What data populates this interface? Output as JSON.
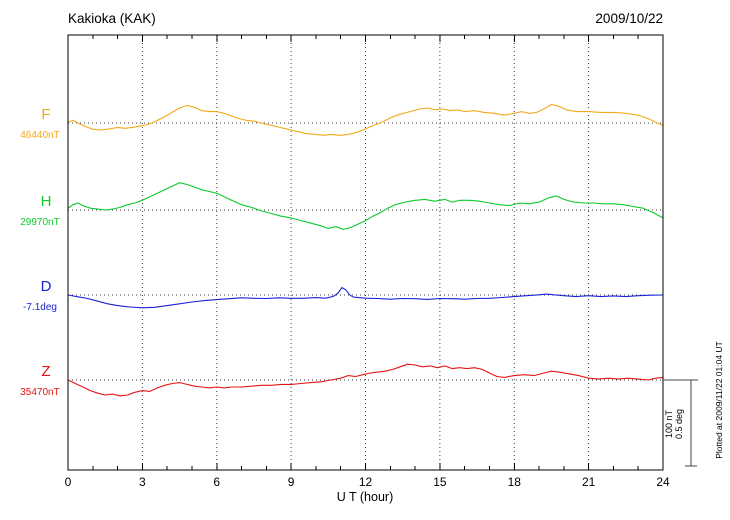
{
  "page": {
    "title": "Kakioka (KAK)",
    "date": "2009/10/22",
    "xlabel": "U T (hour)",
    "plotted_at": "Plotted at 2009/11/22 01:04 UT",
    "scale_bar": {
      "line1": "100 nT",
      "line2": "0.5 deg"
    }
  },
  "chart_data": {
    "type": "line",
    "title": "Kakioka (KAK)",
    "subtitle": "2009/10/22",
    "xlabel": "U T (hour)",
    "x_range": [
      0,
      24
    ],
    "x_ticks": [
      0,
      3,
      6,
      9,
      12,
      15,
      18,
      21,
      24
    ],
    "x_minor_tick_step_hours": 1,
    "grid": "dotted vertical lines at 3-hour ticks; dotted horizontal line at each component baseline",
    "legend_position": "left-of-plot component labels",
    "scale": {
      "nT_per_division": 100,
      "deg_per_division": 0.5
    },
    "points_format": "[hour_UT, offset_from_baseline_in_unit]",
    "series": [
      {
        "label": "F",
        "baseline_label": "46440nT",
        "baseline_value": 46440,
        "unit": "nT",
        "color": "#f5a81c",
        "points": [
          [
            0,
            1
          ],
          [
            0.2,
            3
          ],
          [
            0.4,
            0
          ],
          [
            0.7,
            -4
          ],
          [
            1,
            -7
          ],
          [
            1.3,
            -8
          ],
          [
            1.6,
            -7
          ],
          [
            2,
            -5
          ],
          [
            2.3,
            -6
          ],
          [
            2.6,
            -5
          ],
          [
            3,
            -3
          ],
          [
            3.3,
            -1
          ],
          [
            3.6,
            3
          ],
          [
            3.9,
            7
          ],
          [
            4.2,
            12
          ],
          [
            4.5,
            17
          ],
          [
            4.8,
            20
          ],
          [
            5.1,
            18
          ],
          [
            5.4,
            14
          ],
          [
            5.7,
            13
          ],
          [
            6,
            13
          ],
          [
            6.3,
            11
          ],
          [
            6.6,
            8
          ],
          [
            6.9,
            5
          ],
          [
            7.2,
            3
          ],
          [
            7.5,
            2
          ],
          [
            7.8,
            0
          ],
          [
            8.1,
            -2
          ],
          [
            8.4,
            -4
          ],
          [
            8.7,
            -6
          ],
          [
            9,
            -8
          ],
          [
            9.3,
            -10
          ],
          [
            9.6,
            -12
          ],
          [
            10,
            -13
          ],
          [
            10.3,
            -14
          ],
          [
            10.6,
            -13
          ],
          [
            11,
            -14
          ],
          [
            11.3,
            -13
          ],
          [
            11.6,
            -11
          ],
          [
            11.9,
            -8
          ],
          [
            12.2,
            -4
          ],
          [
            12.5,
            -1
          ],
          [
            12.8,
            3
          ],
          [
            13.1,
            7
          ],
          [
            13.4,
            10
          ],
          [
            13.8,
            13
          ],
          [
            14.2,
            16
          ],
          [
            14.5,
            17
          ],
          [
            14.8,
            15
          ],
          [
            15.1,
            16
          ],
          [
            15.4,
            14
          ],
          [
            15.7,
            15
          ],
          [
            16,
            13
          ],
          [
            16.4,
            14
          ],
          [
            16.8,
            12
          ],
          [
            17.2,
            11
          ],
          [
            17.6,
            9
          ],
          [
            18,
            11
          ],
          [
            18.3,
            13
          ],
          [
            18.6,
            11
          ],
          [
            18.9,
            12
          ],
          [
            19.2,
            16
          ],
          [
            19.5,
            21
          ],
          [
            19.8,
            19
          ],
          [
            20.1,
            15
          ],
          [
            20.5,
            13
          ],
          [
            21,
            13
          ],
          [
            21.5,
            12
          ],
          [
            22,
            12
          ],
          [
            22.5,
            11
          ],
          [
            23,
            9
          ],
          [
            23.4,
            5
          ],
          [
            23.7,
            1
          ],
          [
            24,
            -3
          ]
        ]
      },
      {
        "label": "H",
        "baseline_label": "29970nT",
        "baseline_value": 29970,
        "unit": "nT",
        "color": "#0ccb2a",
        "points": [
          [
            0,
            2
          ],
          [
            0.2,
            6
          ],
          [
            0.4,
            8
          ],
          [
            0.6,
            5
          ],
          [
            0.9,
            2
          ],
          [
            1.2,
            1
          ],
          [
            1.5,
            0
          ],
          [
            1.8,
            1
          ],
          [
            2.1,
            3
          ],
          [
            2.4,
            6
          ],
          [
            2.7,
            8
          ],
          [
            3,
            11
          ],
          [
            3.3,
            15
          ],
          [
            3.6,
            19
          ],
          [
            3.9,
            23
          ],
          [
            4.2,
            27
          ],
          [
            4.5,
            31
          ],
          [
            4.8,
            29
          ],
          [
            5.1,
            26
          ],
          [
            5.4,
            23
          ],
          [
            5.7,
            21
          ],
          [
            6,
            19
          ],
          [
            6.3,
            15
          ],
          [
            6.6,
            11
          ],
          [
            7,
            6
          ],
          [
            7.4,
            3
          ],
          [
            7.8,
            -1
          ],
          [
            8.2,
            -4
          ],
          [
            8.6,
            -7
          ],
          [
            9,
            -9
          ],
          [
            9.4,
            -12
          ],
          [
            9.8,
            -15
          ],
          [
            10.2,
            -18
          ],
          [
            10.5,
            -21
          ],
          [
            10.8,
            -19
          ],
          [
            11.1,
            -22
          ],
          [
            11.4,
            -20
          ],
          [
            11.7,
            -16
          ],
          [
            12,
            -12
          ],
          [
            12.3,
            -7
          ],
          [
            12.6,
            -3
          ],
          [
            12.9,
            2
          ],
          [
            13.2,
            6
          ],
          [
            13.6,
            9
          ],
          [
            14,
            11
          ],
          [
            14.4,
            12
          ],
          [
            14.8,
            10
          ],
          [
            15.2,
            12
          ],
          [
            15.5,
            9
          ],
          [
            15.8,
            11
          ],
          [
            16.2,
            11
          ],
          [
            16.6,
            10
          ],
          [
            17,
            8
          ],
          [
            17.4,
            6
          ],
          [
            17.8,
            5
          ],
          [
            18.2,
            8
          ],
          [
            18.6,
            7
          ],
          [
            19,
            9
          ],
          [
            19.4,
            14
          ],
          [
            19.7,
            16
          ],
          [
            20,
            12
          ],
          [
            20.4,
            9
          ],
          [
            20.8,
            8
          ],
          [
            21.2,
            8
          ],
          [
            21.6,
            7
          ],
          [
            22,
            7
          ],
          [
            22.4,
            6
          ],
          [
            22.8,
            4
          ],
          [
            23.2,
            2
          ],
          [
            23.6,
            -3
          ],
          [
            24,
            -9
          ]
        ]
      },
      {
        "label": "D",
        "baseline_label": "-7.1deg",
        "baseline_value": -7.1,
        "unit": "deg",
        "color": "#1822d8",
        "points": [
          [
            0,
            0
          ],
          [
            0.4,
            -0.01
          ],
          [
            0.8,
            -0.02
          ],
          [
            1.2,
            -0.035
          ],
          [
            1.6,
            -0.05
          ],
          [
            2,
            -0.06
          ],
          [
            2.5,
            -0.068
          ],
          [
            3,
            -0.073
          ],
          [
            3.5,
            -0.07
          ],
          [
            4,
            -0.06
          ],
          [
            4.5,
            -0.05
          ],
          [
            5,
            -0.04
          ],
          [
            5.5,
            -0.032
          ],
          [
            6,
            -0.026
          ],
          [
            6.5,
            -0.021
          ],
          [
            7,
            -0.016
          ],
          [
            7.5,
            -0.019
          ],
          [
            8,
            -0.02
          ],
          [
            8.5,
            -0.016
          ],
          [
            9,
            -0.019
          ],
          [
            9.5,
            -0.019
          ],
          [
            10,
            -0.015
          ],
          [
            10.4,
            -0.018
          ],
          [
            10.7,
            -0.008
          ],
          [
            10.9,
            0.012
          ],
          [
            11.05,
            0.042
          ],
          [
            11.2,
            0.03
          ],
          [
            11.35,
            0.002
          ],
          [
            11.5,
            -0.012
          ],
          [
            12,
            -0.018
          ],
          [
            12.5,
            -0.02
          ],
          [
            13,
            -0.024
          ],
          [
            13.5,
            -0.02
          ],
          [
            14,
            -0.021
          ],
          [
            14.5,
            -0.025
          ],
          [
            15,
            -0.02
          ],
          [
            15.5,
            -0.021
          ],
          [
            16,
            -0.024
          ],
          [
            16.5,
            -0.02
          ],
          [
            17,
            -0.019
          ],
          [
            17.5,
            -0.014
          ],
          [
            18,
            -0.009
          ],
          [
            18.5,
            -0.004
          ],
          [
            19,
            0.001
          ],
          [
            19.3,
            0.005
          ],
          [
            19.6,
            0.001
          ],
          [
            20,
            -0.004
          ],
          [
            20.5,
            -0.009
          ],
          [
            21,
            -0.004
          ],
          [
            21.5,
            -0.009
          ],
          [
            22,
            -0.005
          ],
          [
            22.5,
            -0.009
          ],
          [
            23,
            -0.004
          ],
          [
            23.5,
            -0.001
          ],
          [
            24,
            0
          ]
        ]
      },
      {
        "label": "Z",
        "baseline_label": "35470nT",
        "baseline_value": 35470,
        "unit": "nT",
        "color": "#e41414",
        "points": [
          [
            0,
            0
          ],
          [
            0.3,
            -4
          ],
          [
            0.6,
            -8
          ],
          [
            0.9,
            -12
          ],
          [
            1.2,
            -15
          ],
          [
            1.5,
            -17
          ],
          [
            1.8,
            -16
          ],
          [
            2.1,
            -18
          ],
          [
            2.4,
            -17
          ],
          [
            2.7,
            -14
          ],
          [
            3,
            -12
          ],
          [
            3.3,
            -13
          ],
          [
            3.6,
            -9
          ],
          [
            3.9,
            -6
          ],
          [
            4.2,
            -4
          ],
          [
            4.5,
            -3
          ],
          [
            4.8,
            -5
          ],
          [
            5.1,
            -7
          ],
          [
            5.4,
            -8
          ],
          [
            5.7,
            -9
          ],
          [
            6,
            -8
          ],
          [
            6.3,
            -9
          ],
          [
            6.6,
            -8
          ],
          [
            7,
            -8
          ],
          [
            7.4,
            -7
          ],
          [
            7.8,
            -6
          ],
          [
            8.2,
            -6
          ],
          [
            8.6,
            -5
          ],
          [
            9,
            -5
          ],
          [
            9.4,
            -4
          ],
          [
            9.8,
            -3
          ],
          [
            10.2,
            -2
          ],
          [
            10.6,
            0
          ],
          [
            11,
            2
          ],
          [
            11.3,
            5
          ],
          [
            11.6,
            4
          ],
          [
            11.9,
            6
          ],
          [
            12.2,
            8
          ],
          [
            12.5,
            9
          ],
          [
            12.8,
            10
          ],
          [
            13.1,
            12
          ],
          [
            13.4,
            15
          ],
          [
            13.7,
            18
          ],
          [
            14,
            17
          ],
          [
            14.3,
            15
          ],
          [
            14.6,
            16
          ],
          [
            14.9,
            14
          ],
          [
            15.2,
            16
          ],
          [
            15.5,
            13
          ],
          [
            15.8,
            14
          ],
          [
            16.1,
            13
          ],
          [
            16.4,
            14
          ],
          [
            16.7,
            12
          ],
          [
            17,
            8
          ],
          [
            17.3,
            4
          ],
          [
            17.6,
            3
          ],
          [
            18,
            5
          ],
          [
            18.4,
            6
          ],
          [
            18.8,
            5
          ],
          [
            19.2,
            8
          ],
          [
            19.5,
            10
          ],
          [
            19.8,
            9
          ],
          [
            20.2,
            7
          ],
          [
            20.6,
            5
          ],
          [
            21,
            2
          ],
          [
            21.4,
            1
          ],
          [
            21.8,
            2
          ],
          [
            22.2,
            1
          ],
          [
            22.6,
            2
          ],
          [
            23,
            1
          ],
          [
            23.4,
            0
          ],
          [
            23.7,
            2
          ],
          [
            24,
            3
          ]
        ]
      }
    ]
  }
}
